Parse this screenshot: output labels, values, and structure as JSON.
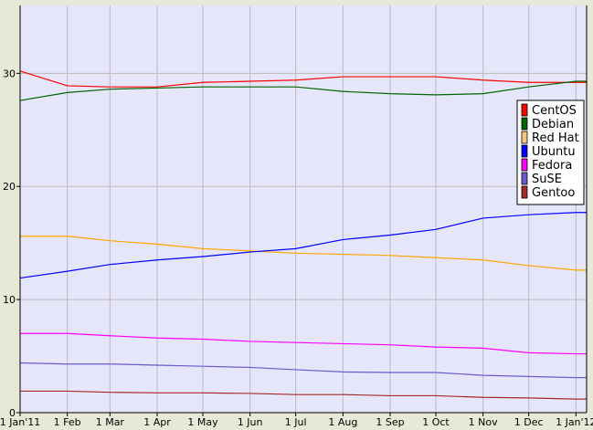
{
  "chart_data": {
    "type": "line",
    "title": "",
    "xlabel": "",
    "ylabel": "",
    "x_tick_labels": [
      "1 Jan'11",
      "1 Feb",
      "1 Mar",
      "1 Apr",
      "1 May",
      "1 Jun",
      "1 Jul",
      "1 Aug",
      "1 Sep",
      "1 Oct",
      "1 Nov",
      "1 Dec",
      "1 Jan'12"
    ],
    "x": [
      "2011-01-01",
      "2011-02-01",
      "2011-03-01",
      "2011-04-01",
      "2011-05-01",
      "2011-06-01",
      "2011-07-01",
      "2011-08-01",
      "2011-09-01",
      "2011-10-01",
      "2011-11-01",
      "2011-12-01",
      "2012-01-01"
    ],
    "xlim": [
      "2011-01-01",
      "2012-01-08"
    ],
    "y_ticks": [
      0,
      10,
      20,
      30
    ],
    "ylim": [
      0,
      36
    ],
    "grid": true,
    "legend_position": "right",
    "background_color": "#e6e6fa",
    "series": [
      {
        "name": "CentOS",
        "color": "#ff0000",
        "values": [
          30.2,
          28.9,
          28.8,
          28.8,
          29.2,
          29.3,
          29.4,
          29.7,
          29.7,
          29.7,
          29.4,
          29.2,
          29.2
        ]
      },
      {
        "name": "Debian",
        "color": "#006400",
        "values": [
          27.6,
          28.3,
          28.6,
          28.7,
          28.8,
          28.8,
          28.8,
          28.4,
          28.2,
          28.1,
          28.2,
          28.8,
          29.3
        ]
      },
      {
        "name": "Red Hat",
        "color": "#ffa500",
        "swatch": "#f5c580",
        "values": [
          15.6,
          15.6,
          15.2,
          14.9,
          14.5,
          14.3,
          14.1,
          14.0,
          13.9,
          13.7,
          13.5,
          13.0,
          12.6
        ]
      },
      {
        "name": "Ubuntu",
        "color": "#0000ff",
        "values": [
          11.9,
          12.5,
          13.1,
          13.5,
          13.8,
          14.2,
          14.5,
          15.3,
          15.7,
          16.2,
          17.2,
          17.5,
          17.7
        ]
      },
      {
        "name": "Fedora",
        "color": "#ff00ff",
        "values": [
          7.0,
          7.0,
          6.8,
          6.6,
          6.5,
          6.3,
          6.2,
          6.1,
          6.0,
          5.8,
          5.7,
          5.3,
          5.2
        ]
      },
      {
        "name": "SuSE",
        "color": "#6a5acd",
        "values": [
          4.4,
          4.3,
          4.3,
          4.2,
          4.1,
          4.0,
          3.8,
          3.6,
          3.55,
          3.55,
          3.3,
          3.2,
          3.1
        ]
      },
      {
        "name": "Gentoo",
        "color": "#a52a2a",
        "values": [
          1.9,
          1.9,
          1.8,
          1.75,
          1.75,
          1.7,
          1.6,
          1.6,
          1.5,
          1.5,
          1.35,
          1.3,
          1.2
        ]
      }
    ]
  }
}
